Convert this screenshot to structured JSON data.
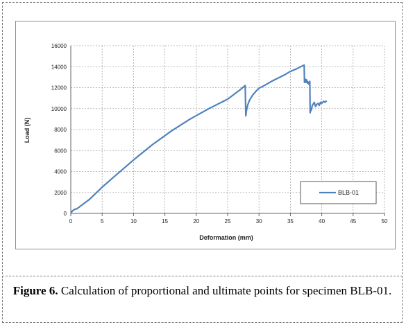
{
  "caption": {
    "label": "Figure 6.",
    "text": " Calculation of proportional and ultimate points for specimen BLB-01."
  },
  "chart_data": {
    "type": "line",
    "title": "",
    "xlabel": "Deformation (mm)",
    "ylabel": "Load (N)",
    "xlim": [
      0,
      50
    ],
    "ylim": [
      0,
      16000
    ],
    "xticks": [
      0,
      5,
      10,
      15,
      20,
      25,
      30,
      35,
      40,
      45,
      50
    ],
    "yticks": [
      0,
      2000,
      4000,
      6000,
      8000,
      10000,
      12000,
      14000,
      16000
    ],
    "grid": true,
    "legend": "bottom-right",
    "series_color": "#4f81bd",
    "series": [
      {
        "name": "BLB-01",
        "x": [
          0,
          0.2,
          0.5,
          1,
          2,
          3,
          5,
          7,
          10,
          13,
          16,
          19,
          22,
          25,
          27,
          27.8,
          27.9,
          28,
          28.2,
          28.5,
          29,
          29.5,
          30,
          31,
          32,
          33,
          34,
          35,
          36,
          37,
          37.2,
          37.25,
          37.4,
          37.5,
          37.6,
          37.7,
          37.8,
          37.9,
          38,
          38.1,
          38.15,
          38.2,
          38.3,
          38.5,
          38.8,
          39,
          39.2,
          39.4,
          39.6,
          39.8,
          40,
          40.3,
          40.5,
          40.8
        ],
        "y": [
          0,
          200,
          350,
          450,
          900,
          1350,
          2500,
          3550,
          5100,
          6550,
          7850,
          9000,
          10000,
          10900,
          11800,
          12200,
          9300,
          9800,
          10350,
          10800,
          11300,
          11650,
          11950,
          12250,
          12600,
          12900,
          13200,
          13550,
          13800,
          14100,
          14150,
          12500,
          12800,
          12500,
          12750,
          12450,
          12550,
          12350,
          12500,
          12600,
          9600,
          10000,
          9800,
          10300,
          10600,
          10200,
          10400,
          10500,
          10300,
          10600,
          10500,
          10700,
          10600,
          10750
        ]
      }
    ]
  }
}
